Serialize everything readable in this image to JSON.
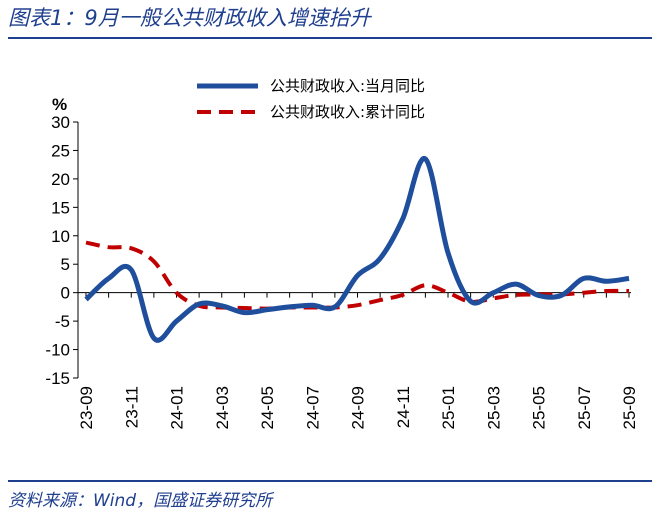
{
  "figure": {
    "title": "图表1：9月一般公共财政收入增速抬升",
    "source": "资料来源：Wind，国盛证券研究所"
  },
  "chart_data": {
    "type": "line",
    "title": "",
    "unit_label": "%",
    "xlabel": "",
    "ylabel": "",
    "ylim": [
      -15,
      30
    ],
    "yticks": [
      -15,
      -10,
      -5,
      0,
      5,
      10,
      15,
      20,
      25,
      30
    ],
    "grid": false,
    "legend_position": "top-right",
    "x": [
      "23-09",
      "23-10",
      "23-11",
      "23-12",
      "24-01",
      "24-02",
      "24-03",
      "24-04",
      "24-05",
      "24-06",
      "24-07",
      "24-08",
      "24-09",
      "24-10",
      "24-11",
      "24-12",
      "25-01",
      "25-02",
      "25-03",
      "25-04",
      "25-05",
      "25-06",
      "25-07",
      "25-08",
      "25-09"
    ],
    "x_tick_labels": [
      "23-09",
      "23-11",
      "24-01",
      "24-03",
      "24-05",
      "24-07",
      "24-09",
      "24-11",
      "25-01",
      "25-03",
      "25-05",
      "25-07",
      "25-09"
    ],
    "series": [
      {
        "name": "公共财政收入:当月同比",
        "color": "#1f4e9c",
        "style": "solid",
        "values": [
          -1.2,
          2.5,
          4.0,
          -8.0,
          -5.0,
          -2.0,
          -2.3,
          -3.5,
          -3.0,
          -2.5,
          -2.2,
          -2.5,
          3.0,
          6.0,
          13.0,
          23.5,
          7.0,
          -1.5,
          0.0,
          1.5,
          -0.5,
          -0.5,
          2.5,
          2.0,
          2.5
        ]
      },
      {
        "name": "公共财政收入:累计同比",
        "color": "#c00000",
        "style": "dashed",
        "values": [
          8.8,
          8.0,
          7.8,
          5.5,
          0.0,
          -2.3,
          -2.6,
          -2.7,
          -2.8,
          -2.6,
          -2.6,
          -2.6,
          -2.2,
          -1.3,
          -0.4,
          1.3,
          0.0,
          -1.6,
          -1.0,
          -0.4,
          -0.3,
          -0.3,
          0.0,
          0.3,
          0.3
        ]
      }
    ]
  }
}
